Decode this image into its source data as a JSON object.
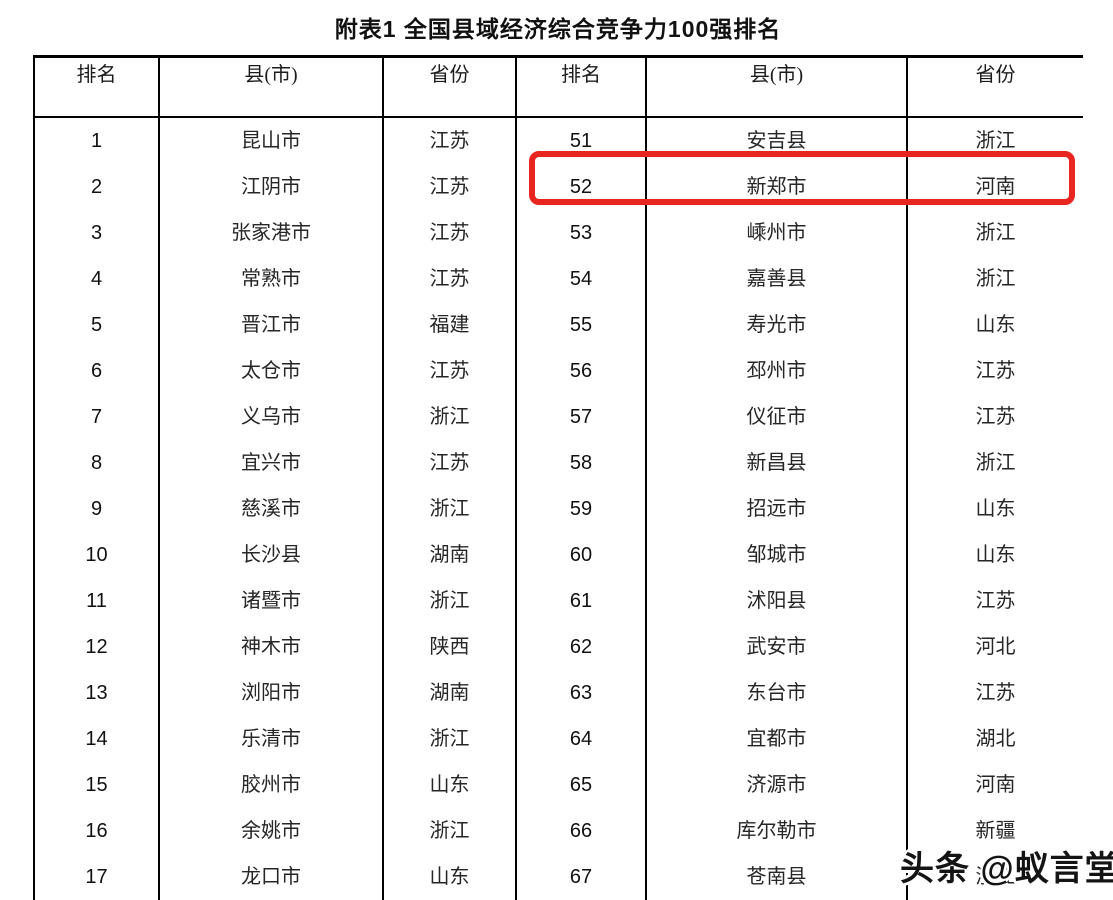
{
  "title": "附表1 全国县域经济综合竞争力100强排名",
  "table": {
    "headers": {
      "rank": "排名",
      "county": "县(市)",
      "province": "省份"
    },
    "left_rows": [
      {
        "rank": "1",
        "county": "昆山市",
        "province": "江苏"
      },
      {
        "rank": "2",
        "county": "江阴市",
        "province": "江苏"
      },
      {
        "rank": "3",
        "county": "张家港市",
        "province": "江苏"
      },
      {
        "rank": "4",
        "county": "常熟市",
        "province": "江苏"
      },
      {
        "rank": "5",
        "county": "晋江市",
        "province": "福建"
      },
      {
        "rank": "6",
        "county": "太仓市",
        "province": "江苏"
      },
      {
        "rank": "7",
        "county": "义乌市",
        "province": "浙江"
      },
      {
        "rank": "8",
        "county": "宜兴市",
        "province": "江苏"
      },
      {
        "rank": "9",
        "county": "慈溪市",
        "province": "浙江"
      },
      {
        "rank": "10",
        "county": "长沙县",
        "province": "湖南"
      },
      {
        "rank": "11",
        "county": "诸暨市",
        "province": "浙江"
      },
      {
        "rank": "12",
        "county": "神木市",
        "province": "陕西"
      },
      {
        "rank": "13",
        "county": "浏阳市",
        "province": "湖南"
      },
      {
        "rank": "14",
        "county": "乐清市",
        "province": "浙江"
      },
      {
        "rank": "15",
        "county": "胶州市",
        "province": "山东"
      },
      {
        "rank": "16",
        "county": "余姚市",
        "province": "浙江"
      },
      {
        "rank": "17",
        "county": "龙口市",
        "province": "山东"
      }
    ],
    "right_rows": [
      {
        "rank": "51",
        "county": "安吉县",
        "province": "浙江"
      },
      {
        "rank": "52",
        "county": "新郑市",
        "province": "河南"
      },
      {
        "rank": "53",
        "county": "嵊州市",
        "province": "浙江"
      },
      {
        "rank": "54",
        "county": "嘉善县",
        "province": "浙江"
      },
      {
        "rank": "55",
        "county": "寿光市",
        "province": "山东"
      },
      {
        "rank": "56",
        "county": "邳州市",
        "province": "江苏"
      },
      {
        "rank": "57",
        "county": "仪征市",
        "province": "江苏"
      },
      {
        "rank": "58",
        "county": "新昌县",
        "province": "浙江"
      },
      {
        "rank": "59",
        "county": "招远市",
        "province": "山东"
      },
      {
        "rank": "60",
        "county": "邹城市",
        "province": "山东"
      },
      {
        "rank": "61",
        "county": "沭阳县",
        "province": "江苏"
      },
      {
        "rank": "62",
        "county": "武安市",
        "province": "河北"
      },
      {
        "rank": "63",
        "county": "东台市",
        "province": "江苏"
      },
      {
        "rank": "64",
        "county": "宜都市",
        "province": "湖北"
      },
      {
        "rank": "65",
        "county": "济源市",
        "province": "河南"
      },
      {
        "rank": "66",
        "county": "库尔勒市",
        "province": "新疆"
      },
      {
        "rank": "67",
        "county": "苍南县",
        "province": "浙江"
      }
    ],
    "highlight": {
      "row_rank": "52",
      "color": "#e8251e"
    }
  },
  "watermark": {
    "text": "头条 @蚁言堂"
  }
}
